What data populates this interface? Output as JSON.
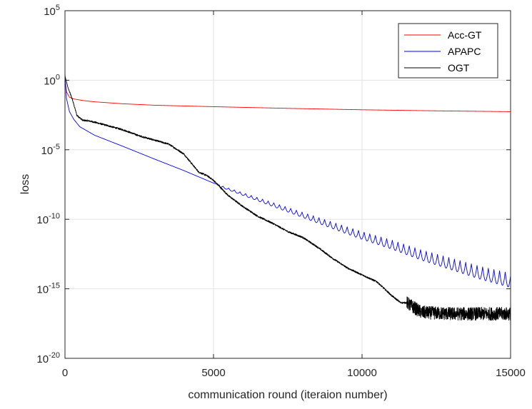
{
  "chart_data": {
    "type": "line",
    "title": "",
    "xlabel": "communication round (iteraion number)",
    "ylabel": "loss",
    "xlim": [
      0,
      15000
    ],
    "ylim": [
      1e-20,
      100000.0
    ],
    "yscale": "log",
    "grid": true,
    "legend_position": "top-right",
    "x_ticks": [
      {
        "value": 0,
        "label": "0"
      },
      {
        "value": 5000,
        "label": "5000"
      },
      {
        "value": 10000,
        "label": "10000"
      },
      {
        "value": 15000,
        "label": "15000"
      }
    ],
    "y_ticks": [
      {
        "exp": 5,
        "base": "10",
        "sup": "5"
      },
      {
        "exp": 0,
        "base": "10",
        "sup": "0"
      },
      {
        "exp": -5,
        "base": "10",
        "sup": "-5"
      },
      {
        "exp": -10,
        "base": "10",
        "sup": "-10"
      },
      {
        "exp": -15,
        "base": "10",
        "sup": "-15"
      },
      {
        "exp": -20,
        "base": "10",
        "sup": "-20"
      }
    ],
    "series": [
      {
        "name": "Acc-GT",
        "color": "#ff0000",
        "x": [
          0,
          50,
          150,
          300,
          600,
          1000,
          2000,
          3000,
          5000,
          7500,
          10000,
          12500,
          15000
        ],
        "y": [
          1.0,
          0.15,
          0.06,
          0.045,
          0.035,
          0.028,
          0.02,
          0.016,
          0.0125,
          0.0095,
          0.0075,
          0.0063,
          0.0055
        ]
      },
      {
        "name": "APAPC",
        "color": "#0000ff",
        "oscillation_start_x": 5200,
        "x": [
          0,
          50,
          150,
          300,
          500,
          1000,
          2000,
          3000,
          4000,
          5000,
          6000,
          7000,
          8000,
          9000,
          10000,
          11000,
          12000,
          13000,
          14000,
          15000
        ],
        "y": [
          3.0,
          0.05,
          0.0056,
          0.0015,
          0.00045,
          0.00011,
          1.6e-05,
          2.2e-06,
          3.2e-07,
          4e-08,
          8e-09,
          1.6e-09,
          3.2e-10,
          6.3e-11,
          1.3e-11,
          3.2e-12,
          6.3e-13,
          1.6e-13,
          4e-14,
          1.3e-14
        ]
      },
      {
        "name": "OGT",
        "color": "#000000",
        "noise_start_x": 11500,
        "x": [
          0,
          100,
          250,
          400,
          600,
          800,
          1000,
          1500,
          2000,
          2500,
          3000,
          3500,
          4000,
          4500,
          4800,
          5000,
          5500,
          6000,
          6500,
          7000,
          7500,
          8000,
          8500,
          9000,
          9500,
          10000,
          10500,
          11000,
          11300,
          11500,
          12000,
          13000,
          14000,
          15000
        ],
        "y": [
          2.0,
          0.3,
          0.04,
          0.003,
          0.0013,
          0.0012,
          0.00095,
          0.0005,
          0.00025,
          0.0001,
          5e-05,
          2.5e-05,
          5e-06,
          2.5e-07,
          1.3e-07,
          6.3e-08,
          5e-09,
          8e-10,
          1.6e-10,
          5e-11,
          1.3e-11,
          5e-12,
          1e-12,
          1.6e-13,
          3.2e-14,
          1e-14,
          3.2e-15,
          3.2e-16,
          1e-16,
          1e-16,
          2e-17,
          1.6e-17,
          1.6e-17,
          1.6e-17
        ]
      }
    ]
  }
}
